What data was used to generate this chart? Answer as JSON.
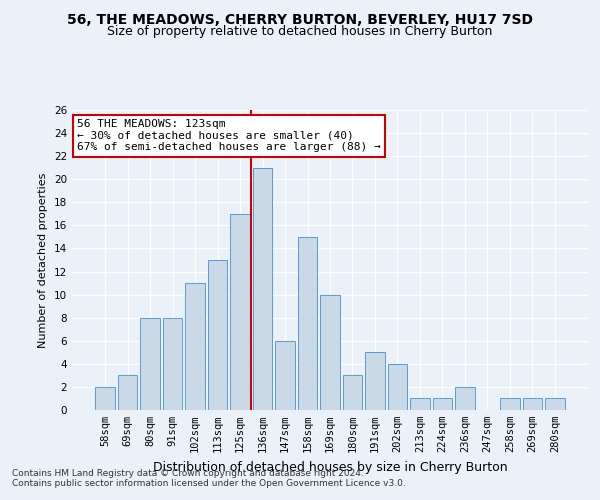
{
  "title": "56, THE MEADOWS, CHERRY BURTON, BEVERLEY, HU17 7SD",
  "subtitle": "Size of property relative to detached houses in Cherry Burton",
  "xlabel": "Distribution of detached houses by size in Cherry Burton",
  "ylabel": "Number of detached properties",
  "categories": [
    "58sqm",
    "69sqm",
    "80sqm",
    "91sqm",
    "102sqm",
    "113sqm",
    "125sqm",
    "136sqm",
    "147sqm",
    "158sqm",
    "169sqm",
    "180sqm",
    "191sqm",
    "202sqm",
    "213sqm",
    "224sqm",
    "236sqm",
    "247sqm",
    "258sqm",
    "269sqm",
    "280sqm"
  ],
  "values": [
    2,
    3,
    8,
    8,
    11,
    13,
    17,
    21,
    6,
    15,
    10,
    3,
    5,
    4,
    1,
    1,
    2,
    0,
    1,
    1,
    1
  ],
  "bar_color": "#c9d9e8",
  "bar_edge_color": "#5b9bd5",
  "vline_x_index": 6,
  "vline_color": "#cc0000",
  "annotation_line1": "56 THE MEADOWS: 123sqm",
  "annotation_line2": "← 30% of detached houses are smaller (40)",
  "annotation_line3": "67% of semi-detached houses are larger (88) →",
  "annotation_box_color": "#ffffff",
  "annotation_box_edge": "#cc0000",
  "ylim": [
    0,
    26
  ],
  "yticks": [
    0,
    2,
    4,
    6,
    8,
    10,
    12,
    14,
    16,
    18,
    20,
    22,
    24,
    26
  ],
  "footer1": "Contains HM Land Registry data © Crown copyright and database right 2024.",
  "footer2": "Contains public sector information licensed under the Open Government Licence v3.0.",
  "bg_color": "#eaf1f8",
  "plot_bg_color": "#eaf1f8",
  "grid_color": "#ffffff",
  "title_fontsize": 10,
  "subtitle_fontsize": 9,
  "xlabel_fontsize": 9,
  "ylabel_fontsize": 8,
  "tick_fontsize": 7.5,
  "footer_fontsize": 6.5,
  "annotation_fontsize": 8
}
